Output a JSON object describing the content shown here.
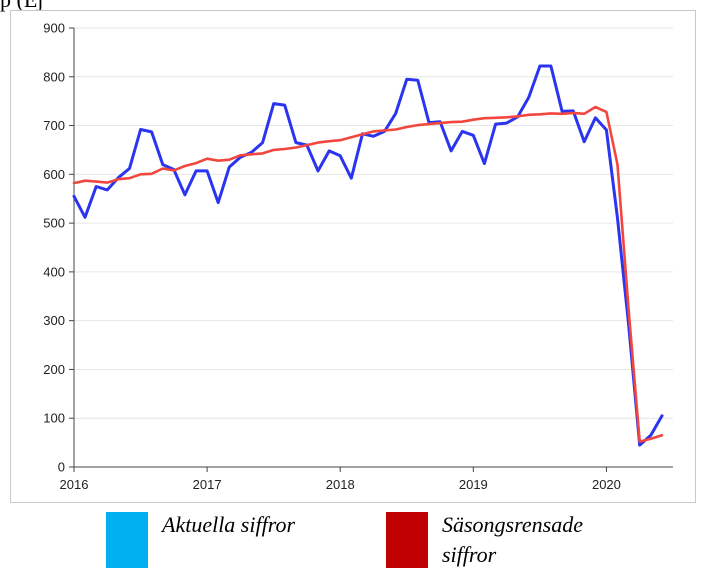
{
  "header_fragment": "p (Ej",
  "chart_data": {
    "type": "line",
    "xlabel": "",
    "ylabel": "",
    "ylim": [
      0,
      900
    ],
    "yticks": [
      0,
      100,
      200,
      300,
      400,
      500,
      600,
      700,
      800,
      900
    ],
    "xticks": [
      {
        "value": 2016,
        "label": "2016"
      },
      {
        "value": 2017,
        "label": "2017"
      },
      {
        "value": 2018,
        "label": "2018"
      },
      {
        "value": 2019,
        "label": "2019"
      },
      {
        "value": 2020,
        "label": "2020"
      }
    ],
    "xlim": [
      2016,
      2020.5
    ],
    "grid": "horizontal",
    "legend_position": "bottom",
    "series": [
      {
        "name": "Aktuella siffror",
        "color": "#2b35f0",
        "x": [
          2016.0,
          2016.083,
          2016.167,
          2016.25,
          2016.333,
          2016.417,
          2016.5,
          2016.583,
          2016.667,
          2016.75,
          2016.833,
          2016.917,
          2017.0,
          2017.083,
          2017.167,
          2017.25,
          2017.333,
          2017.417,
          2017.5,
          2017.583,
          2017.667,
          2017.75,
          2017.833,
          2017.917,
          2018.0,
          2018.083,
          2018.167,
          2018.25,
          2018.333,
          2018.417,
          2018.5,
          2018.583,
          2018.667,
          2018.75,
          2018.833,
          2018.917,
          2019.0,
          2019.083,
          2019.167,
          2019.25,
          2019.333,
          2019.417,
          2019.5,
          2019.583,
          2019.667,
          2019.75,
          2019.833,
          2019.917,
          2020.0,
          2020.083,
          2020.167,
          2020.25,
          2020.333,
          2020.417
        ],
        "values": [
          555,
          512,
          575,
          568,
          593,
          612,
          692,
          687,
          620,
          610,
          558,
          607,
          607,
          542,
          615,
          635,
          645,
          665,
          745,
          742,
          665,
          660,
          607,
          648,
          638,
          592,
          683,
          678,
          688,
          725,
          795,
          793,
          706,
          708,
          648,
          688,
          680,
          622,
          703,
          705,
          718,
          758,
          822,
          822,
          729,
          730,
          667,
          716,
          691,
          510,
          290,
          45,
          65,
          105
        ]
      },
      {
        "name": "Säsongsrensade siffror",
        "color": "#f2473f",
        "x": [
          2016.0,
          2016.083,
          2016.167,
          2016.25,
          2016.333,
          2016.417,
          2016.5,
          2016.583,
          2016.667,
          2016.75,
          2016.833,
          2016.917,
          2017.0,
          2017.083,
          2017.167,
          2017.25,
          2017.333,
          2017.417,
          2017.5,
          2017.583,
          2017.667,
          2017.75,
          2017.833,
          2017.917,
          2018.0,
          2018.083,
          2018.167,
          2018.25,
          2018.333,
          2018.417,
          2018.5,
          2018.583,
          2018.667,
          2018.75,
          2018.833,
          2018.917,
          2019.0,
          2019.083,
          2019.167,
          2019.25,
          2019.333,
          2019.417,
          2019.5,
          2019.583,
          2019.667,
          2019.75,
          2019.833,
          2019.917,
          2020.0,
          2020.083,
          2020.167,
          2020.25,
          2020.333,
          2020.417
        ],
        "values": [
          582,
          587,
          585,
          583,
          590,
          592,
          600,
          601,
          612,
          608,
          617,
          623,
          632,
          628,
          630,
          639,
          641,
          643,
          650,
          652,
          655,
          660,
          665,
          668,
          670,
          676,
          682,
          688,
          690,
          692,
          697,
          701,
          703,
          705,
          707,
          708,
          712,
          715,
          716,
          717,
          719,
          722,
          723,
          725,
          724,
          726,
          724,
          738,
          728,
          620,
          320,
          52,
          58,
          65
        ]
      }
    ]
  },
  "legend": [
    {
      "label": "Aktuella siffror",
      "color": "#00b0f0"
    },
    {
      "label": "Säsongsrensade siffror",
      "color": "#c00000"
    }
  ]
}
